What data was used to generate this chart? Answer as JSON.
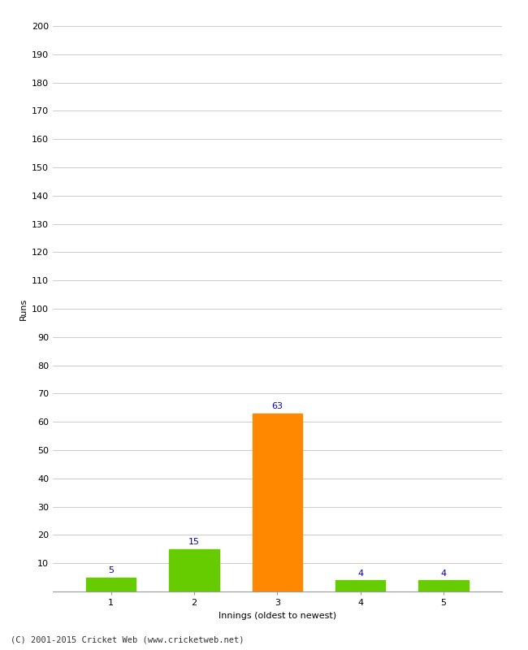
{
  "categories": [
    "1",
    "2",
    "3",
    "4",
    "5"
  ],
  "values": [
    5,
    15,
    63,
    4,
    4
  ],
  "bar_colors": [
    "#66cc00",
    "#66cc00",
    "#ff8800",
    "#66cc00",
    "#66cc00"
  ],
  "title": "",
  "xlabel": "Innings (oldest to newest)",
  "ylabel": "Runs",
  "ylim": [
    0,
    200
  ],
  "yticks": [
    0,
    10,
    20,
    30,
    40,
    50,
    60,
    70,
    80,
    90,
    100,
    110,
    120,
    130,
    140,
    150,
    160,
    170,
    180,
    190,
    200
  ],
  "label_color": "#0000cc",
  "label_fontsize": 8,
  "axis_fontsize": 8,
  "ylabel_fontsize": 8,
  "xlabel_fontsize": 8,
  "background_color": "#ffffff",
  "grid_color": "#cccccc",
  "footer": "(C) 2001-2015 Cricket Web (www.cricketweb.net)"
}
